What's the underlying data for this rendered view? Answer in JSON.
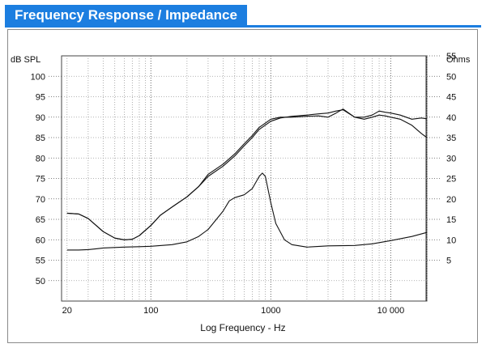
{
  "header": {
    "title": "Frequency Response / Impedance"
  },
  "colors": {
    "title_background": "#1c7ee0",
    "grid": "#9a9a9a",
    "curve": "#111111"
  },
  "chart_data": {
    "type": "line",
    "title": "",
    "xlabel": "Log Frequency - Hz",
    "ylabel_left": "dB SPL",
    "ylabel_right": "Ohms",
    "x_scale": "log",
    "xlim": [
      18,
      20000
    ],
    "ylim_left": [
      45,
      105
    ],
    "ylim_right": [
      -5,
      55
    ],
    "grid": true,
    "x_ticks": [
      {
        "value": 20,
        "label": "20"
      },
      {
        "value": 100,
        "label": "100"
      },
      {
        "value": 1000,
        "label": "1000"
      },
      {
        "value": 10000,
        "label": "10 000"
      }
    ],
    "y_left_ticks": [
      50,
      55,
      60,
      65,
      70,
      75,
      80,
      85,
      90,
      95,
      100
    ],
    "y_right_ticks": [
      5,
      10,
      15,
      20,
      25,
      30,
      35,
      40,
      45,
      50,
      55
    ],
    "series": [
      {
        "axis": "left",
        "x": [
          20,
          25,
          30,
          40,
          50,
          60,
          70,
          80,
          100,
          120,
          150,
          200,
          250,
          300,
          400,
          500,
          600,
          700,
          800,
          1000,
          1200,
          1500,
          2000,
          2500,
          3000,
          3500,
          4000,
          5000,
          6000,
          7000,
          8000,
          9000,
          10000,
          12000,
          15000,
          18000,
          20000
        ],
        "y": [
          66.5,
          66.3,
          65.2,
          62,
          60.4,
          60,
          60.1,
          61,
          63.5,
          66,
          68,
          70.5,
          73,
          76,
          78.5,
          81,
          83.5,
          85.5,
          87.5,
          89.5,
          90,
          90,
          90.2,
          90.3,
          90,
          91,
          92,
          90,
          90,
          90.5,
          91.5,
          91.2,
          91,
          90.5,
          89.5,
          89.8,
          89.6
        ]
      },
      {
        "axis": "left",
        "x": [
          20,
          25,
          30,
          40,
          50,
          60,
          70,
          80,
          100,
          120,
          150,
          200,
          250,
          300,
          400,
          500,
          600,
          700,
          800,
          1000,
          1200,
          1500,
          2000,
          2500,
          3000,
          3500,
          4000,
          5000,
          6000,
          7000,
          8000,
          9000,
          10000,
          12000,
          15000,
          18000,
          20000
        ],
        "y": [
          66.5,
          66.3,
          65.2,
          62,
          60.4,
          60,
          60.1,
          61,
          63.5,
          66,
          68,
          70.5,
          73,
          75.5,
          78,
          80.5,
          83,
          85,
          87,
          89,
          89.8,
          90.2,
          90.5,
          90.8,
          91,
          91.5,
          91.8,
          90,
          89.5,
          90,
          90.5,
          90.3,
          90,
          89.5,
          88,
          86,
          85
        ]
      },
      {
        "axis": "right",
        "x": [
          20,
          25,
          30,
          35,
          40,
          50,
          60,
          80,
          100,
          150,
          200,
          250,
          300,
          400,
          450,
          500,
          600,
          700,
          800,
          850,
          900,
          1000,
          1100,
          1300,
          1500,
          2000,
          3000,
          5000,
          7000,
          10000,
          15000,
          20000
        ],
        "y": [
          7.5,
          7.5,
          7.6,
          7.8,
          8,
          8.1,
          8.2,
          8.3,
          8.4,
          8.8,
          9.5,
          10.8,
          12.5,
          17,
          19.5,
          20.3,
          21,
          22.5,
          25.5,
          26.3,
          25.5,
          19,
          14,
          10,
          8.8,
          8.2,
          8.5,
          8.6,
          9,
          9.8,
          10.8,
          11.8
        ]
      }
    ]
  }
}
